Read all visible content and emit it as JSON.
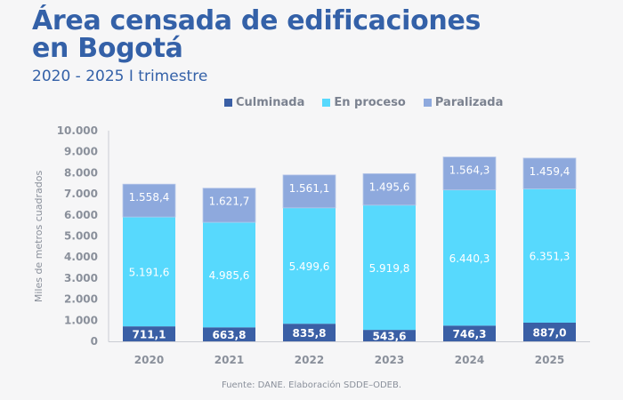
{
  "chart_data": {
    "type": "bar",
    "stacked": true,
    "title": "Área censada de edificaciones en Bogotá",
    "title_lines": [
      "Área censada de edificaciones",
      "en Bogotá"
    ],
    "subtitle": "2020 - 2025 I trimestre",
    "xlabel": "",
    "ylabel": "Miles de metros cuadrados",
    "ylim": [
      0,
      10000
    ],
    "yticks": [
      0,
      1000,
      2000,
      3000,
      4000,
      5000,
      6000,
      7000,
      8000,
      9000,
      10000
    ],
    "ytick_labels": [
      "0",
      "1.000",
      "2.000",
      "3.000",
      "4.000",
      "5.000",
      "6.000",
      "7.000",
      "8.000",
      "9.000",
      "10.000"
    ],
    "categories": [
      "2020",
      "2021",
      "2022",
      "2023",
      "2024",
      "2025"
    ],
    "grid": false,
    "legend_position": "top-center",
    "series": [
      {
        "name": "Culminada",
        "color": "#3a5fa5",
        "values": [
          711.1,
          663.8,
          835.8,
          543.6,
          746.3,
          887.0
        ],
        "labels": [
          "711,1",
          "663,8",
          "835,8",
          "543,6",
          "746,3",
          "887,0"
        ]
      },
      {
        "name": "En proceso",
        "color": "#57d9fd",
        "values": [
          5191.6,
          4985.6,
          5499.6,
          5919.8,
          6440.3,
          6351.3
        ],
        "labels": [
          "5.191,6",
          "4.985,6",
          "5.499,6",
          "5.919,8",
          "6.440,3",
          "6.351,3"
        ]
      },
      {
        "name": "Paralizada",
        "color": "#8ea9dd",
        "values": [
          1558.4,
          1621.7,
          1561.1,
          1495.6,
          1564.3,
          1459.4
        ],
        "labels": [
          "1.558,4",
          "1.621,7",
          "1.561,1",
          "1.495,6",
          "1.564,3",
          "1.459,4"
        ]
      }
    ],
    "source": "Fuente: DANE. Elaboración SDDE–ODEB."
  }
}
